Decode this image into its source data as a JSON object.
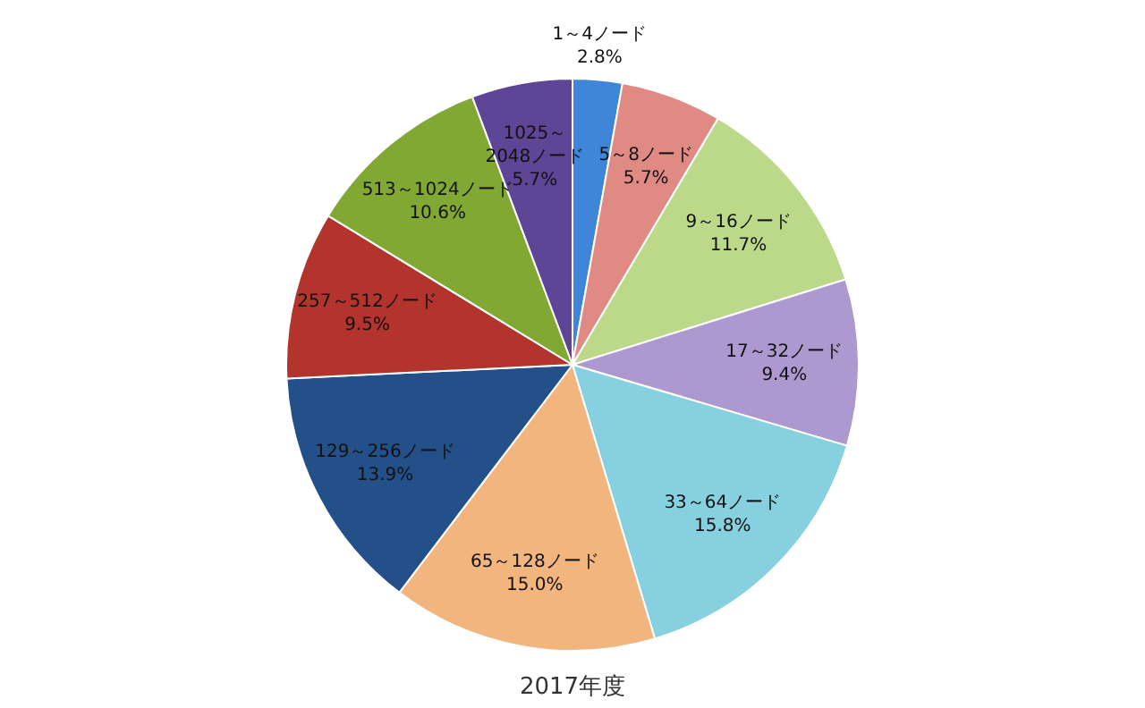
{
  "chart_data": {
    "type": "pie",
    "title": "2017年度",
    "categories": [
      "1～4ノード",
      "5～8ノード",
      "9～16ノード",
      "17～32ノード",
      "33～64ノード",
      "65～128ノード",
      "129～256ノード",
      "257～512ノード",
      "513～1024ノード",
      "1025～2048ノード"
    ],
    "values": [
      2.8,
      5.7,
      11.7,
      9.4,
      15.8,
      15.0,
      13.9,
      9.5,
      10.6,
      5.7
    ],
    "value_labels": [
      "2.8%",
      "5.7%",
      "11.7%",
      "9.4%",
      "15.8%",
      "15.0%",
      "13.9%",
      "9.5%",
      "10.6%",
      "5.7%"
    ],
    "colors": [
      "#3f86d8",
      "#e08a84",
      "#bcd989",
      "#ad98cf",
      "#86d0e0",
      "#f2b57e",
      "#24508a",
      "#b3342d",
      "#80a833",
      "#5e4596"
    ]
  }
}
